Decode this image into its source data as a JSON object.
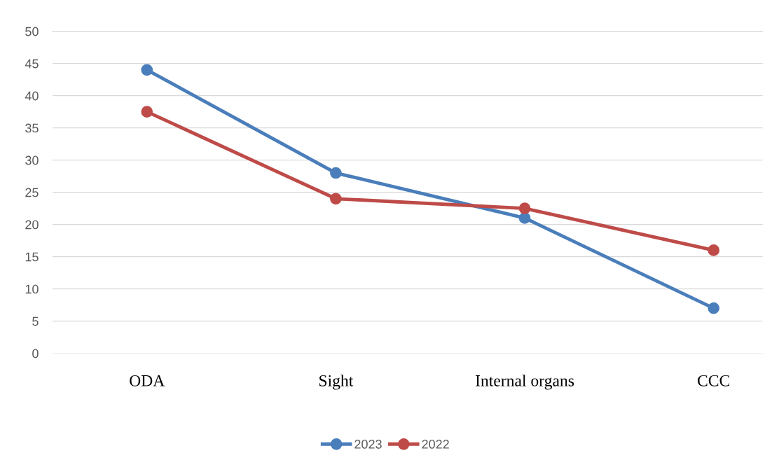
{
  "chart_data": {
    "type": "line",
    "categories": [
      "ODA",
      "Sight",
      "Internal organs",
      "CCC"
    ],
    "series": [
      {
        "name": "2023",
        "color": "#4a7ebb",
        "values": [
          44,
          28,
          21,
          7
        ]
      },
      {
        "name": "2022",
        "color": "#be4b48",
        "values": [
          37.5,
          24,
          22.5,
          16
        ]
      }
    ],
    "ylim": [
      0,
      50
    ],
    "yticks": [
      0,
      5,
      10,
      15,
      20,
      25,
      30,
      35,
      40,
      45,
      50
    ],
    "grid": "y",
    "legend": "bottom",
    "marker": "circle",
    "line_style": "solid"
  }
}
